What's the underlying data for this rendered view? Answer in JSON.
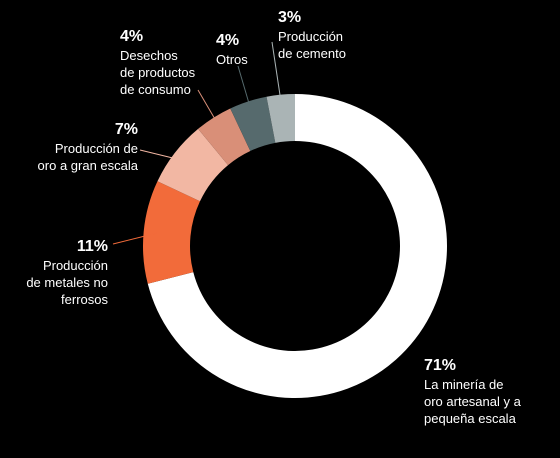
{
  "chart_data": {
    "type": "pie",
    "variant": "donut",
    "title": "",
    "categories": [
      "La minería de oro artesanal y a pequeña escala",
      "Producción de metales no ferrosos",
      "Producción de oro a gran escala",
      "Desechos de productos de consumo",
      "Otros",
      "Producción de cemento"
    ],
    "values": [
      71,
      11,
      7,
      4,
      4,
      3
    ],
    "colors": [
      "#ffffff",
      "#f26b3a",
      "#f2b7a3",
      "#d98f78",
      "#566a6d",
      "#aab4b5"
    ],
    "start_angle_deg": 0,
    "direction": "clockwise"
  },
  "labels": [
    {
      "pct": "71%",
      "text": "La minería de\noro artesanal y a\npequeña escala"
    },
    {
      "pct": "11%",
      "text": "Producción\nde metales no\nferrosos"
    },
    {
      "pct": "7%",
      "text": "Producción de\noro a gran escala"
    },
    {
      "pct": "4%",
      "text": "Desechos\nde productos\nde consumo"
    },
    {
      "pct": "4%",
      "text": "Otros"
    },
    {
      "pct": "3%",
      "text": "Producción\nde cemento"
    }
  ]
}
